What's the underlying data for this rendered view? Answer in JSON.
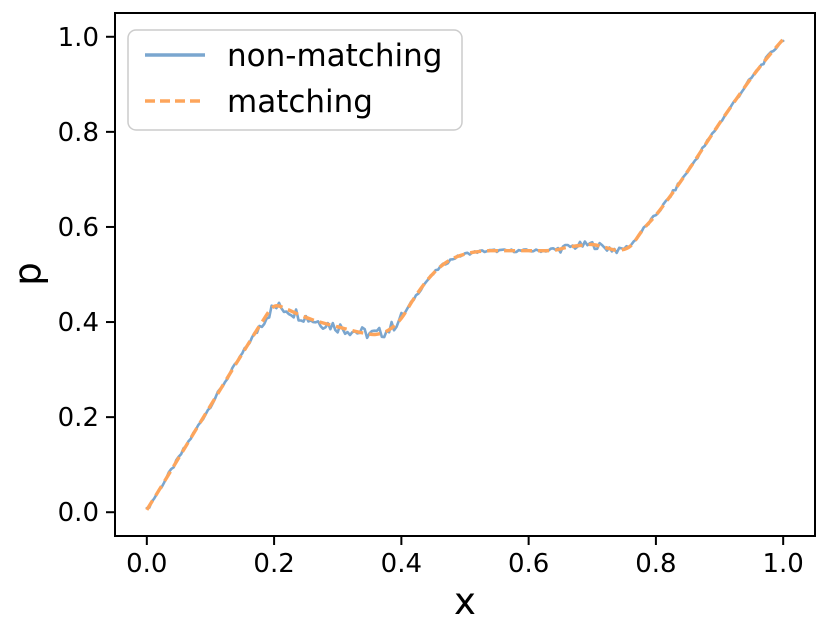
{
  "colors": {
    "background": "#ffffff",
    "text": "#000000",
    "spine": "#000000",
    "legend_border": "#cccccc",
    "non_matching_line": "#7aa6cf",
    "matching_line": "#fda55c"
  },
  "chart_data": {
    "type": "line",
    "title": "",
    "xlabel": "x",
    "ylabel": "p",
    "xlim": [
      -0.05,
      1.05
    ],
    "ylim": [
      -0.05,
      1.05
    ],
    "grid": false,
    "legend_position": "upper left",
    "x_ticks": [
      0.0,
      0.2,
      0.4,
      0.6,
      0.8,
      1.0
    ],
    "y_ticks": [
      0.0,
      0.2,
      0.4,
      0.6,
      0.8,
      1.0
    ],
    "x": [
      0.0,
      0.02,
      0.04,
      0.06,
      0.08,
      0.1,
      0.12,
      0.14,
      0.16,
      0.18,
      0.2,
      0.22,
      0.24,
      0.26,
      0.28,
      0.3,
      0.32,
      0.34,
      0.36,
      0.38,
      0.4,
      0.42,
      0.44,
      0.46,
      0.48,
      0.5,
      0.52,
      0.54,
      0.56,
      0.58,
      0.6,
      0.62,
      0.64,
      0.66,
      0.68,
      0.7,
      0.72,
      0.74,
      0.76,
      0.78,
      0.8,
      0.82,
      0.84,
      0.86,
      0.88,
      0.9,
      0.92,
      0.94,
      0.96,
      0.98,
      1.0
    ],
    "series": [
      {
        "name": "non-matching",
        "style": "solid",
        "color": "#7aa6cf",
        "values": [
          0.005,
          0.048,
          0.092,
          0.136,
          0.18,
          0.224,
          0.268,
          0.312,
          0.355,
          0.398,
          0.433,
          0.427,
          0.415,
          0.405,
          0.397,
          0.39,
          0.383,
          0.377,
          0.374,
          0.383,
          0.408,
          0.45,
          0.487,
          0.515,
          0.533,
          0.543,
          0.548,
          0.55,
          0.55,
          0.55,
          0.55,
          0.55,
          0.551,
          0.557,
          0.561,
          0.563,
          0.557,
          0.551,
          0.56,
          0.595,
          0.625,
          0.66,
          0.698,
          0.737,
          0.778,
          0.818,
          0.857,
          0.895,
          0.931,
          0.964,
          0.995
        ],
        "noise_regions": [
          {
            "x_range": [
              0.17,
              0.4
            ],
            "amplitude": 0.013
          },
          {
            "x_range": [
              0.63,
              0.74
            ],
            "amplitude": 0.008
          },
          {
            "x_range": [
              0.0,
              0.17
            ],
            "amplitude": 0.004
          },
          {
            "x_range": [
              0.4,
              0.63
            ],
            "amplitude": 0.003
          },
          {
            "x_range": [
              0.74,
              1.0
            ],
            "amplitude": 0.004
          }
        ]
      },
      {
        "name": "matching",
        "style": "dashed",
        "color": "#fda55c",
        "values": [
          0.005,
          0.048,
          0.092,
          0.136,
          0.18,
          0.224,
          0.268,
          0.312,
          0.355,
          0.398,
          0.433,
          0.427,
          0.415,
          0.405,
          0.397,
          0.39,
          0.383,
          0.377,
          0.374,
          0.383,
          0.408,
          0.45,
          0.487,
          0.515,
          0.533,
          0.543,
          0.548,
          0.55,
          0.55,
          0.55,
          0.55,
          0.55,
          0.551,
          0.557,
          0.561,
          0.563,
          0.557,
          0.551,
          0.56,
          0.595,
          0.625,
          0.66,
          0.698,
          0.737,
          0.778,
          0.818,
          0.857,
          0.895,
          0.931,
          0.964,
          0.995
        ]
      }
    ]
  }
}
